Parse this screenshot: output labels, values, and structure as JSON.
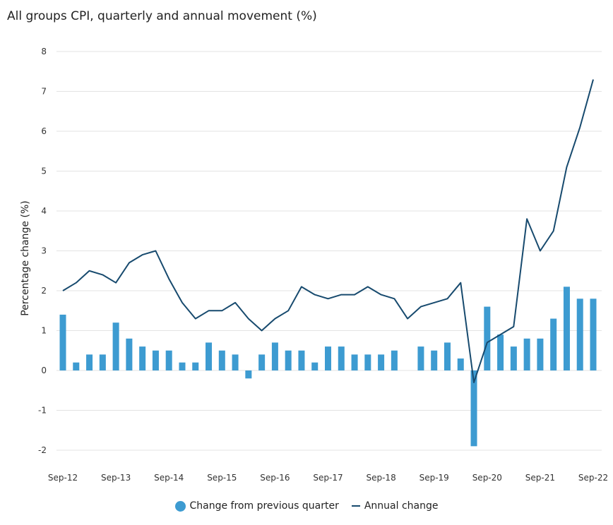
{
  "chart_data": {
    "type": "bar+line",
    "title": "All groups CPI, quarterly and annual movement (%)",
    "xlabel": "",
    "ylabel": "Percentage change (%)",
    "ylim": [
      -2,
      8
    ],
    "yticks": [
      "-2",
      "-1",
      "0",
      "1",
      "2",
      "3",
      "4",
      "5",
      "6",
      "7",
      "8"
    ],
    "grid": true,
    "legend_position": "bottom",
    "xtick_labels": [
      "Sep-12",
      "Sep-13",
      "Sep-14",
      "Sep-15",
      "Sep-16",
      "Sep-17",
      "Sep-18",
      "Sep-19",
      "Sep-20",
      "Sep-21",
      "Sep-22"
    ],
    "categories": [
      "Sep-12",
      "Dec-12",
      "Mar-13",
      "Jun-13",
      "Sep-13",
      "Dec-13",
      "Mar-14",
      "Jun-14",
      "Sep-14",
      "Dec-14",
      "Mar-15",
      "Jun-15",
      "Sep-15",
      "Dec-15",
      "Mar-16",
      "Jun-16",
      "Sep-16",
      "Dec-16",
      "Mar-17",
      "Jun-17",
      "Sep-17",
      "Dec-17",
      "Mar-18",
      "Jun-18",
      "Sep-18",
      "Dec-18",
      "Mar-19",
      "Jun-19",
      "Sep-19",
      "Dec-19",
      "Mar-20",
      "Jun-20",
      "Sep-20",
      "Dec-20",
      "Mar-21",
      "Jun-21",
      "Sep-21",
      "Dec-21",
      "Mar-22",
      "Jun-22",
      "Sep-22"
    ],
    "series": [
      {
        "name": "Change from previous quarter",
        "type": "bar",
        "color": "#3d9bd1",
        "values": [
          1.4,
          0.2,
          0.4,
          0.4,
          1.2,
          0.8,
          0.6,
          0.5,
          0.5,
          0.2,
          0.2,
          0.7,
          0.5,
          0.4,
          -0.2,
          0.4,
          0.7,
          0.5,
          0.5,
          0.2,
          0.6,
          0.6,
          0.4,
          0.4,
          0.4,
          0.5,
          0.0,
          0.6,
          0.5,
          0.7,
          0.3,
          -1.9,
          1.6,
          0.9,
          0.6,
          0.8,
          0.8,
          1.3,
          2.1,
          1.8,
          1.8
        ]
      },
      {
        "name": "Annual change",
        "type": "line",
        "color": "#174a6e",
        "values": [
          2.0,
          2.2,
          2.5,
          2.4,
          2.2,
          2.7,
          2.9,
          3.0,
          2.3,
          1.7,
          1.3,
          1.5,
          1.5,
          1.7,
          1.3,
          1.0,
          1.3,
          1.5,
          2.1,
          1.9,
          1.8,
          1.9,
          1.9,
          2.1,
          1.9,
          1.8,
          1.3,
          1.6,
          1.7,
          1.8,
          2.2,
          -0.3,
          0.7,
          0.9,
          1.1,
          3.8,
          3.0,
          3.5,
          5.1,
          6.1,
          7.3
        ]
      }
    ]
  }
}
